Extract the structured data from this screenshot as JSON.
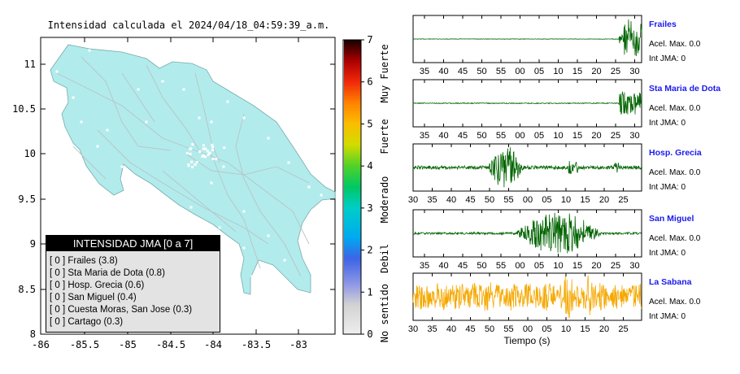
{
  "map": {
    "title": "Intensidad calculada el 2024/04/18_04:59:39_a.m.",
    "x_ticks": [
      "-86",
      "-85.5",
      "-85",
      "-84.5",
      "-84",
      "-83.5",
      "-83"
    ],
    "y_ticks": [
      "11",
      "10.5",
      "10",
      "9.5",
      "9",
      "8.5",
      "8"
    ],
    "x_range": [
      -86,
      -82.6
    ],
    "y_range": [
      8,
      11.3
    ],
    "fill_color": "#b2ebec"
  },
  "colorbar": {
    "ticks": [
      "0",
      "1",
      "2",
      "3",
      "4",
      "5",
      "6",
      "7"
    ],
    "categories": [
      "No sentido",
      "Debil",
      "Moderado",
      "Fuerte",
      "Muy Fuerte"
    ]
  },
  "legend": {
    "title": "INTENSIDAD JMA [0 a 7]",
    "items": [
      "[ 0 ] Frailes (3.8)",
      "[ 0 ] Sta Maria de Dota (0.8)",
      "[ 0 ] Hosp. Grecia (0.6)",
      "[ 0 ] San Miguel (0.4)",
      "[ 0 ] Cuesta Moras, San Jose (0.3)",
      "[ 0 ] Cartago (0.3)"
    ]
  },
  "chart_data": [
    {
      "type": "line",
      "station": "Frailes",
      "acel": "Acel. Max. 0.0",
      "int": "Int JMA: 0",
      "color": "#006400",
      "ticks": [
        "35",
        "40",
        "45",
        "50",
        "55",
        "00",
        "05",
        "10",
        "15",
        "20",
        "25",
        "30"
      ]
    },
    {
      "type": "line",
      "station": "Sta Maria de Dota",
      "acel": "Acel. Max. 0.0",
      "int": "Int JMA: 0",
      "color": "#006400",
      "ticks": [
        "35",
        "40",
        "45",
        "50",
        "55",
        "00",
        "05",
        "10",
        "15",
        "20",
        "25",
        "30"
      ]
    },
    {
      "type": "line",
      "station": "Hosp. Grecia",
      "acel": "Acel. Max. 0.0",
      "int": "Int JMA: 0",
      "color": "#006400",
      "ticks": [
        "30",
        "35",
        "40",
        "45",
        "50",
        "55",
        "00",
        "05",
        "10",
        "15",
        "20",
        "25"
      ]
    },
    {
      "type": "line",
      "station": "San Miguel",
      "acel": "Acel. Max. 0.0",
      "int": "Int JMA: 0",
      "color": "#006400",
      "ticks": [
        "35",
        "40",
        "45",
        "50",
        "55",
        "00",
        "05",
        "10",
        "15",
        "20",
        "25",
        "30"
      ]
    },
    {
      "type": "line",
      "station": "La Sabana",
      "acel": "Acel. Max. 0.0",
      "int": "Int JMA: 0",
      "color": "#f5a800",
      "ticks": [
        "30",
        "35",
        "40",
        "45",
        "50",
        "55",
        "00",
        "05",
        "10",
        "15",
        "20",
        "25"
      ],
      "xlabel": "Tiempo (s)"
    }
  ]
}
